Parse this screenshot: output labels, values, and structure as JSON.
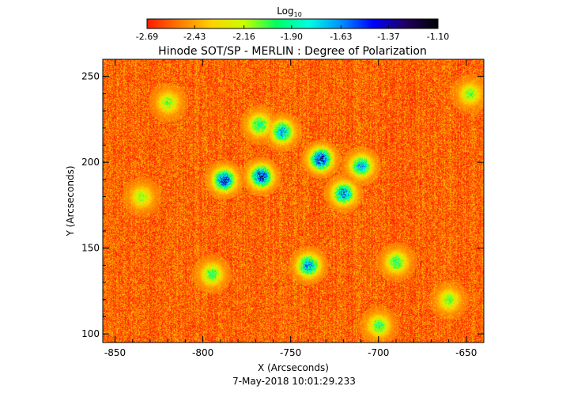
{
  "chart_data": {
    "type": "heatmap",
    "title": "Hinode SOT/SP - MERLIN : Degree of Polarization",
    "footer": "7-May-2018 10:01:29.233",
    "xlabel": "X (Arcseconds)",
    "ylabel": "Y (Arcseconds)",
    "xlim": [
      -857,
      -640
    ],
    "ylim": [
      95,
      260
    ],
    "x_ticks": [
      {
        "value": -850,
        "label": "-850"
      },
      {
        "value": -800,
        "label": "-800"
      },
      {
        "value": -750,
        "label": "-750"
      },
      {
        "value": -700,
        "label": "-700"
      },
      {
        "value": -650,
        "label": "-650"
      }
    ],
    "y_ticks": [
      {
        "value": 100,
        "label": "100"
      },
      {
        "value": 150,
        "label": "150"
      },
      {
        "value": 200,
        "label": "200"
      },
      {
        "value": 250,
        "label": "250"
      }
    ],
    "colorbar": {
      "title_base": "Log",
      "title_sub": "10",
      "range": [
        -2.69,
        -1.1
      ],
      "ticks": [
        {
          "value": -2.69,
          "label": "-2.69"
        },
        {
          "value": -2.43,
          "label": "-2.43"
        },
        {
          "value": -2.16,
          "label": "-2.16"
        },
        {
          "value": -1.9,
          "label": "-1.90"
        },
        {
          "value": -1.63,
          "label": "-1.63"
        },
        {
          "value": -1.37,
          "label": "-1.37"
        },
        {
          "value": -1.1,
          "label": "-1.10"
        }
      ],
      "colors": [
        "#ff1a00",
        "#ff7a00",
        "#ffd200",
        "#c8ff00",
        "#00ff60",
        "#00ffe0",
        "#0090ff",
        "#0000ff",
        "#200060",
        "#000000"
      ]
    },
    "background_level": -2.55,
    "active_regions": [
      {
        "x": -788,
        "y": 190,
        "peak": -1.3
      },
      {
        "x": -767,
        "y": 192,
        "peak": -1.25
      },
      {
        "x": -733,
        "y": 202,
        "peak": -1.25
      },
      {
        "x": -720,
        "y": 182,
        "peak": -1.45
      },
      {
        "x": -755,
        "y": 218,
        "peak": -1.55
      },
      {
        "x": -710,
        "y": 198,
        "peak": -1.6
      },
      {
        "x": -740,
        "y": 140,
        "peak": -1.5
      },
      {
        "x": -768,
        "y": 222,
        "peak": -1.8
      },
      {
        "x": -795,
        "y": 135,
        "peak": -1.9
      },
      {
        "x": -820,
        "y": 235,
        "peak": -2.0
      },
      {
        "x": -690,
        "y": 142,
        "peak": -1.85
      },
      {
        "x": -648,
        "y": 240,
        "peak": -2.0
      },
      {
        "x": -700,
        "y": 105,
        "peak": -1.9
      },
      {
        "x": -835,
        "y": 180,
        "peak": -2.05
      },
      {
        "x": -660,
        "y": 120,
        "peak": -2.0
      }
    ]
  }
}
